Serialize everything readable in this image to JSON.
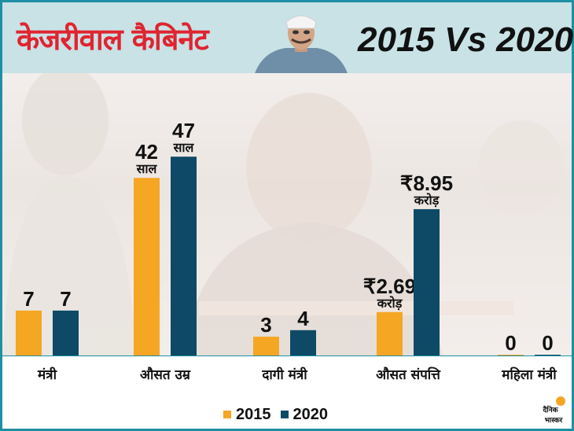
{
  "header": {
    "title_hi": "केजरीवाल कैबिनेट",
    "title_en": "2015 Vs 2020"
  },
  "colors": {
    "series_2015": "#f5a623",
    "series_2020": "#0e4a66",
    "title_red": "#e02430",
    "header_bg": "#c8e2e6",
    "border": "#1e8fa4"
  },
  "logo": {
    "text_line1": "दैनिक",
    "text_line2": "भास्कर"
  },
  "chart_data": {
    "type": "bar",
    "title": "",
    "xlabel": "",
    "ylabel": "",
    "categories": [
      "मंत्री",
      "औसत उम्र",
      "दागी मंत्री",
      "औसत संपत्ति",
      "महिला मंत्री"
    ],
    "series": [
      {
        "name": "2015",
        "values": [
          7,
          42,
          3,
          2.69,
          0
        ],
        "labels": [
          [
            "7"
          ],
          [
            "42",
            "साल"
          ],
          [
            "3"
          ],
          [
            "₹2.69",
            "करोड़"
          ],
          [
            "0"
          ]
        ]
      },
      {
        "name": "2020",
        "values": [
          7,
          47,
          4,
          8.95,
          0
        ],
        "labels": [
          [
            "7"
          ],
          [
            "47",
            "साल"
          ],
          [
            "4"
          ],
          [
            "₹8.95",
            "करोड़"
          ],
          [
            "0"
          ]
        ]
      }
    ],
    "legend_position": "bottom-center",
    "grid": false
  }
}
